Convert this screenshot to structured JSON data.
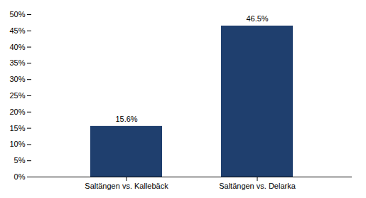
{
  "chart_data": {
    "type": "bar",
    "categories": [
      "Saltängen vs. Kallebäck",
      "Saltängen vs. Delarka"
    ],
    "values": [
      0.156,
      0.465
    ],
    "value_labels": [
      "15.6%",
      "46.5%"
    ],
    "data_labels": true,
    "color": "#1F3F6E",
    "ylim": [
      0,
      0.5
    ],
    "yticks": [
      {
        "value": 0.0,
        "label": "0%"
      },
      {
        "value": 0.05,
        "label": "5%"
      },
      {
        "value": 0.1,
        "label": "10%"
      },
      {
        "value": 0.15,
        "label": "15%"
      },
      {
        "value": 0.2,
        "label": "20%"
      },
      {
        "value": 0.25,
        "label": "25%"
      },
      {
        "value": 0.3,
        "label": "30%"
      },
      {
        "value": 0.35,
        "label": "35%"
      },
      {
        "value": 0.4,
        "label": "40%"
      },
      {
        "value": 0.45,
        "label": "45%"
      },
      {
        "value": 0.5,
        "label": "50%"
      }
    ],
    "grid": false
  }
}
